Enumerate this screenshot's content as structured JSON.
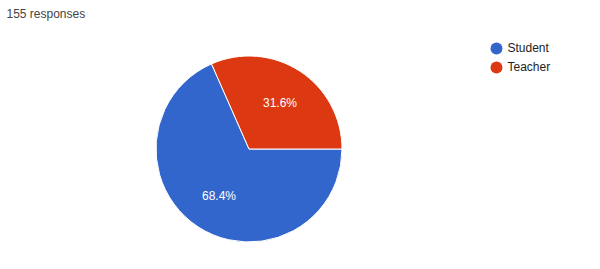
{
  "chart_data": {
    "type": "pie",
    "title": "155 responses",
    "categories": [
      "Student",
      "Teacher"
    ],
    "values": [
      68.4,
      31.6
    ],
    "value_labels": [
      "68.4%",
      "31.6%"
    ],
    "colors": [
      "#3366cc",
      "#dc3912"
    ],
    "data_labels": true,
    "legend": "right"
  }
}
